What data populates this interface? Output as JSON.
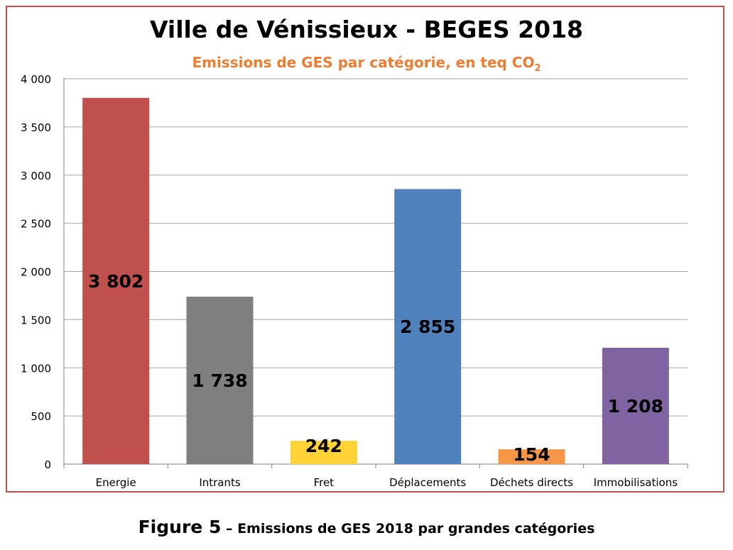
{
  "chart_data": {
    "type": "bar",
    "title": "Ville de Vénissieux - BEGES 2018",
    "subtitle": {
      "text": "Emissions de GES par catégorie, en teq CO",
      "subscript": "2"
    },
    "categories": [
      "Energie",
      "Intrants",
      "Fret",
      "Déplacements",
      "Déchets directs",
      "Immobilisations"
    ],
    "values": [
      3802,
      1738,
      242,
      2855,
      154,
      1208
    ],
    "value_labels": [
      "3 802",
      "1 738",
      "242",
      "2 855",
      "154",
      "1 208"
    ],
    "colors": [
      "#c0504d",
      "#7f7f7f",
      "#ffd335",
      "#4f81bd",
      "#f79646",
      "#8064a2"
    ],
    "ylim": [
      0,
      4000
    ],
    "yticks": [
      0,
      500,
      1000,
      1500,
      2000,
      2500,
      3000,
      3500,
      4000
    ],
    "ytick_labels": [
      "0",
      "500",
      "1 000",
      "1 500",
      "2 000",
      "2 500",
      "3 000",
      "3 500",
      "4 000"
    ],
    "xlabel": "",
    "ylabel": "",
    "grid": true,
    "legend": "none"
  },
  "caption": {
    "label": "Figure 5",
    "text": " – Emissions de GES 2018 par grandes catégories"
  },
  "colors": {
    "frame_border": "#c0504d",
    "subtitle": "#ed7d31",
    "gridline": "#a6a6a6"
  }
}
